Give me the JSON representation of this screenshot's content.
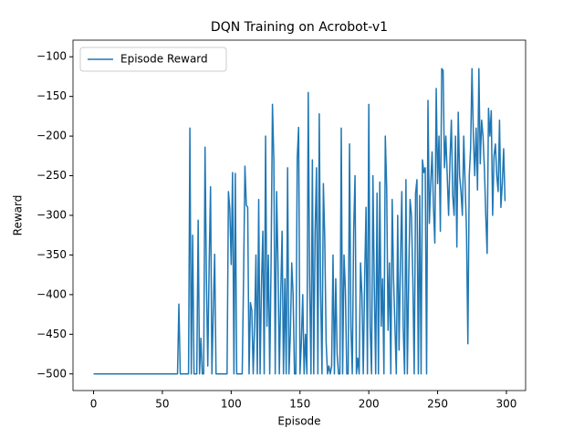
{
  "chart_data": {
    "type": "line",
    "title": "DQN Training on Acrobot-v1",
    "x_label": "Episode",
    "y_label": "Reward",
    "x": [
      0,
      1,
      2,
      3,
      4,
      5,
      6,
      7,
      8,
      9,
      10,
      11,
      12,
      13,
      14,
      15,
      16,
      17,
      18,
      19,
      20,
      21,
      22,
      23,
      24,
      25,
      26,
      27,
      28,
      29,
      30,
      31,
      32,
      33,
      34,
      35,
      36,
      37,
      38,
      39,
      40,
      41,
      42,
      43,
      44,
      45,
      46,
      47,
      48,
      49,
      50,
      51,
      52,
      53,
      54,
      55,
      56,
      57,
      58,
      59,
      60,
      61,
      62,
      63,
      64,
      65,
      66,
      67,
      68,
      69,
      70,
      71,
      72,
      73,
      74,
      75,
      76,
      77,
      78,
      79,
      80,
      81,
      82,
      83,
      84,
      85,
      86,
      87,
      88,
      89,
      90,
      91,
      92,
      93,
      94,
      95,
      96,
      97,
      98,
      99,
      100,
      101,
      102,
      103,
      104,
      105,
      106,
      107,
      108,
      109,
      110,
      111,
      112,
      113,
      114,
      115,
      116,
      117,
      118,
      119,
      120,
      121,
      122,
      123,
      124,
      125,
      126,
      127,
      128,
      129,
      130,
      131,
      132,
      133,
      134,
      135,
      136,
      137,
      138,
      139,
      140,
      141,
      142,
      143,
      144,
      145,
      146,
      147,
      148,
      149,
      150,
      151,
      152,
      153,
      154,
      155,
      156,
      157,
      158,
      159,
      160,
      161,
      162,
      163,
      164,
      165,
      166,
      167,
      168,
      169,
      170,
      171,
      172,
      173,
      174,
      175,
      176,
      177,
      178,
      179,
      180,
      181,
      182,
      183,
      184,
      185,
      186,
      187,
      188,
      189,
      190,
      191,
      192,
      193,
      194,
      195,
      196,
      197,
      198,
      199,
      200,
      201,
      202,
      203,
      204,
      205,
      206,
      207,
      208,
      209,
      210,
      211,
      212,
      213,
      214,
      215,
      216,
      217,
      218,
      219,
      220,
      221,
      222,
      223,
      224,
      225,
      226,
      227,
      228,
      229,
      230,
      231,
      232,
      233,
      234,
      235,
      236,
      237,
      238,
      239,
      240,
      241,
      242,
      243,
      244,
      245,
      246,
      247,
      248,
      249,
      250,
      251,
      252,
      253,
      254,
      255,
      256,
      257,
      258,
      259,
      260,
      261,
      262,
      263,
      264,
      265,
      266,
      267,
      268,
      269,
      270,
      271,
      272,
      273,
      274,
      275,
      276,
      277,
      278,
      279,
      280,
      281,
      282,
      283,
      284,
      285,
      286,
      287,
      288,
      289,
      290,
      291,
      292,
      293,
      294,
      295,
      296,
      297,
      298,
      299
    ],
    "series": [
      {
        "name": "Episode Reward",
        "color": "#1f77b4",
        "values": [
          -500,
          -500,
          -500,
          -500,
          -500,
          -500,
          -500,
          -500,
          -500,
          -500,
          -500,
          -500,
          -500,
          -500,
          -500,
          -500,
          -500,
          -500,
          -500,
          -500,
          -500,
          -500,
          -500,
          -500,
          -500,
          -500,
          -500,
          -500,
          -500,
          -500,
          -500,
          -500,
          -500,
          -500,
          -500,
          -500,
          -500,
          -500,
          -500,
          -500,
          -500,
          -500,
          -500,
          -500,
          -500,
          -500,
          -500,
          -500,
          -500,
          -500,
          -500,
          -500,
          -500,
          -500,
          -500,
          -500,
          -500,
          -500,
          -500,
          -500,
          -500,
          -500,
          -412,
          -500,
          -500,
          -500,
          -500,
          -500,
          -500,
          -500,
          -190,
          -500,
          -325,
          -500,
          -500,
          -500,
          -306,
          -500,
          -455,
          -500,
          -500,
          -214,
          -380,
          -490,
          -360,
          -264,
          -500,
          -420,
          -349,
          -500,
          -500,
          -500,
          -500,
          -500,
          -500,
          -500,
          -500,
          -500,
          -270,
          -292,
          -362,
          -246,
          -500,
          -247,
          -500,
          -500,
          -500,
          -500,
          -500,
          -380,
          -238,
          -287,
          -290,
          -500,
          -410,
          -420,
          -500,
          -440,
          -350,
          -500,
          -280,
          -500,
          -390,
          -320,
          -500,
          -200,
          -440,
          -350,
          -500,
          -360,
          -160,
          -230,
          -500,
          -270,
          -360,
          -500,
          -400,
          -320,
          -500,
          -380,
          -500,
          -240,
          -500,
          -450,
          -360,
          -400,
          -500,
          -500,
          -228,
          -189,
          -500,
          -460,
          -400,
          -500,
          -450,
          -500,
          -145,
          -380,
          -500,
          -230,
          -500,
          -320,
          -240,
          -500,
          -172,
          -395,
          -500,
          -260,
          -330,
          -460,
          -500,
          -490,
          -500,
          -490,
          -350,
          -500,
          -380,
          -475,
          -500,
          -500,
          -190,
          -500,
          -350,
          -395,
          -500,
          -500,
          -210,
          -440,
          -500,
          -320,
          -250,
          -500,
          -480,
          -500,
          -360,
          -400,
          -500,
          -380,
          -290,
          -500,
          -160,
          -440,
          -500,
          -250,
          -390,
          -500,
          -272,
          -500,
          -258,
          -440,
          -380,
          -500,
          -200,
          -265,
          -445,
          -360,
          -500,
          -280,
          -380,
          -440,
          -500,
          -300,
          -470,
          -360,
          -270,
          -440,
          -500,
          -255,
          -500,
          -380,
          -280,
          -300,
          -380,
          -500,
          -272,
          -255,
          -500,
          -275,
          -500,
          -230,
          -246,
          -240,
          -500,
          -155,
          -310,
          -260,
          -220,
          -290,
          -335,
          -140,
          -260,
          -200,
          -320,
          -115,
          -117,
          -240,
          -200,
          -250,
          -300,
          -230,
          -180,
          -275,
          -300,
          -200,
          -340,
          -170,
          -250,
          -270,
          -300,
          -200,
          -260,
          -320,
          -462,
          -250,
          -215,
          -115,
          -200,
          -250,
          -190,
          -268,
          -115,
          -235,
          -180,
          -200,
          -240,
          -300,
          -348,
          -165,
          -200,
          -168,
          -300,
          -225,
          -210,
          -250,
          -270,
          -180,
          -290,
          -260,
          -216,
          -282
        ]
      }
    ],
    "xlim": [
      -14.95,
      313.95
    ],
    "xticks": [
      0,
      50,
      100,
      150,
      200,
      250,
      300
    ],
    "ylim": [
      -521,
      -79
    ],
    "yticks": [
      {
        "value": -100,
        "label": "−100"
      },
      {
        "value": -150,
        "label": "−150"
      },
      {
        "value": -200,
        "label": "−200"
      },
      {
        "value": -250,
        "label": "−250"
      },
      {
        "value": -300,
        "label": "−300"
      },
      {
        "value": -350,
        "label": "−350"
      },
      {
        "value": -400,
        "label": "−400"
      },
      {
        "value": -450,
        "label": "−450"
      },
      {
        "value": -500,
        "label": "−500"
      }
    ],
    "legend": "upper left"
  }
}
